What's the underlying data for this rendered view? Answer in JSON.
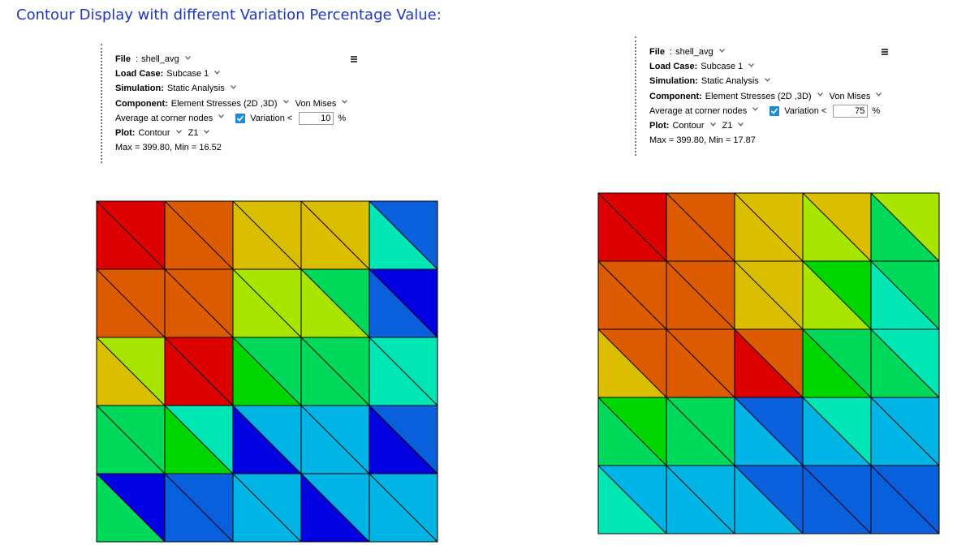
{
  "title": "Contour Display with different Variation Percentage Value:",
  "panels": [
    {
      "file_label": "File",
      "file_value": "shell_avg",
      "load_case_label": "Load Case:",
      "load_case_value": "Subcase 1",
      "simulation_label": "Simulation:",
      "simulation_value": "Static Analysis",
      "component_label": "Component:",
      "component_value": "Element Stresses (2D ,3D)",
      "component_type": "Von Mises",
      "averaging": "Average at corner nodes",
      "variation_checked": true,
      "variation_label": "Variation <",
      "variation_value": "10",
      "variation_unit": "%",
      "plot_label": "Plot:",
      "plot_value": "Contour",
      "layer_value": "Z1",
      "max_min": "Max = 399.80, Min = 16.52"
    },
    {
      "file_label": "File",
      "file_value": "shell_avg",
      "load_case_label": "Load Case:",
      "load_case_value": "Subcase 1",
      "simulation_label": "Simulation:",
      "simulation_value": "Static Analysis",
      "component_label": "Component:",
      "component_value": "Element Stresses (2D ,3D)",
      "component_type": "Von Mises",
      "averaging": "Average at corner nodes",
      "variation_checked": true,
      "variation_label": "Variation <",
      "variation_value": "75",
      "variation_unit": "%",
      "plot_label": "Plot:",
      "plot_value": "Contour",
      "layer_value": "Z1",
      "max_min": "Max = 399.80, Min = 17.87"
    }
  ],
  "icons": {
    "menu": "hamburger-menu-icon",
    "dropdown": "chevron-down-icon",
    "checkbox": "checkmark-icon"
  },
  "colors": {
    "title": "#1f35c4",
    "checkbox": "#1e8ad6",
    "legend_scale": [
      "#0000e0",
      "#0a5fdc",
      "#00b4e6",
      "#00e6b4",
      "#00d95a",
      "#00d600",
      "#a8e600",
      "#dcbe00",
      "#dc5a00",
      "#dc0000"
    ]
  },
  "contour_plots": [
    {
      "grid": 5,
      "elements": [
        [
          "#dc0000",
          "#dc0000",
          "#dc5a00",
          "#dc5a00",
          "#dcbe00",
          "#dcbe00",
          "#dcbe00",
          "#dcbe00",
          "#00e6b4",
          "#0a5fdc"
        ],
        [
          "#dc5a00",
          "#dc5a00",
          "#dc5a00",
          "#dc5a00",
          "#a8e600",
          "#a8e600",
          "#a8e600",
          "#00d95a",
          "#0a5fdc",
          "#0000e0"
        ],
        [
          "#dcbe00",
          "#a8e600",
          "#dc0000",
          "#dc0000",
          "#00d600",
          "#00d95a",
          "#00d95a",
          "#00d95a",
          "#00e6b4",
          "#00e6b4"
        ],
        [
          "#00d95a",
          "#00d95a",
          "#00d600",
          "#00e6b4",
          "#0000e0",
          "#00b4e6",
          "#00b4e6",
          "#00b4e6",
          "#0000e0",
          "#0a5fdc"
        ],
        [
          "#00d95a",
          "#0000e0",
          "#0a5fdc",
          "#0a5fdc",
          "#00b4e6",
          "#00b4e6",
          "#0000e0",
          "#00b4e6",
          "#00b4e6",
          "#00b4e6"
        ]
      ]
    },
    {
      "grid": 5,
      "elements": [
        [
          "#dc0000",
          "#dc0000",
          "#dc5a00",
          "#dc5a00",
          "#dcbe00",
          "#dcbe00",
          "#a8e600",
          "#dcbe00",
          "#00d95a",
          "#a8e600"
        ],
        [
          "#dc5a00",
          "#dc5a00",
          "#dc5a00",
          "#dc5a00",
          "#dcbe00",
          "#dcbe00",
          "#a8e600",
          "#00d600",
          "#00e6b4",
          "#00d95a"
        ],
        [
          "#dcbe00",
          "#dc5a00",
          "#dc5a00",
          "#dc5a00",
          "#dc0000",
          "#dc5a00",
          "#00d600",
          "#00d95a",
          "#00d95a",
          "#00e6b4"
        ],
        [
          "#00d95a",
          "#00d600",
          "#00d95a",
          "#00d95a",
          "#00b4e6",
          "#0a5fdc",
          "#00b4e6",
          "#00e6b4",
          "#00b4e6",
          "#00b4e6"
        ],
        [
          "#00e6b4",
          "#00b4e6",
          "#00b4e6",
          "#00b4e6",
          "#00b4e6",
          "#0a5fdc",
          "#0a5fdc",
          "#0a5fdc",
          "#0a5fdc",
          "#0a5fdc"
        ]
      ]
    }
  ]
}
